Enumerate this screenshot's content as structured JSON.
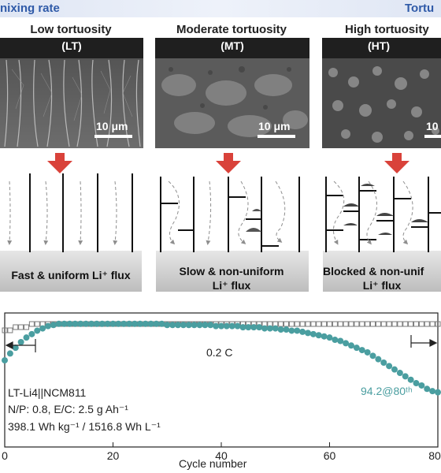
{
  "header": {
    "left": "nixing rate",
    "right": "Tortu"
  },
  "panels": [
    {
      "title": "Low tortuosity",
      "abbr": "(LT)",
      "scale": "10 μm",
      "flux": "Fast & uniform Li⁺ flux",
      "flux2": ""
    },
    {
      "title": "Moderate tortuosity",
      "abbr": "(MT)",
      "scale": "10 μm",
      "flux": "Slow & non-uniform",
      "flux2": "Li⁺ flux"
    },
    {
      "title": "High tortuosity",
      "abbr": "(HT)",
      "scale": "10",
      "flux": "Blocked & non-unif",
      "flux2": "Li⁺ flux"
    }
  ],
  "colors": {
    "arrow": "#d9423a",
    "capacity": "#4a9ea0",
    "efficiency": "#7a7a7a",
    "title_blue": "#2f5aa8"
  },
  "chart_data": {
    "type": "scatter",
    "title": "",
    "xlabel": "Cycle number",
    "ylabel": "",
    "xlim": [
      0,
      80
    ],
    "x_ticks": [
      0,
      20,
      40,
      60,
      80
    ],
    "x_tick_labels": [
      "0",
      "20",
      "40",
      "60",
      "80"
    ],
    "annotations": {
      "rate": "0.2 C",
      "cell": "LT-Li4||NCM811",
      "ratio": "N/P: 0.8, E/C: 2.5 g Ah⁻¹",
      "energy": "398.1 Wh kg⁻¹ / 1516.8 Wh L⁻¹",
      "retention": "94.2@80ᵗʰ"
    },
    "series": [
      {
        "marker": "open-square",
        "values": [
          99.6,
          99.6,
          99.7,
          99.7,
          99.7,
          99.8,
          99.8,
          99.8,
          99.8,
          99.8,
          99.8,
          99.8,
          99.8,
          99.8,
          99.8,
          99.8,
          99.8,
          99.8,
          99.8,
          99.8,
          99.8,
          99.8,
          99.8,
          99.8,
          99.8,
          99.8,
          99.8,
          99.8,
          99.8,
          99.8,
          99.8,
          99.8,
          99.8,
          99.8,
          99.8,
          99.8,
          99.8,
          99.8,
          99.8,
          99.8,
          99.8,
          99.8,
          99.8,
          99.8,
          99.8,
          99.8,
          99.8,
          99.8,
          99.8,
          99.8,
          99.8,
          99.8,
          99.8,
          99.8,
          99.8,
          99.8,
          99.8,
          99.8,
          99.8,
          99.8,
          99.8,
          99.8,
          99.8,
          99.8,
          99.8,
          99.8,
          99.8,
          99.8,
          99.8,
          99.8,
          99.8,
          99.8,
          99.8,
          99.8,
          99.8,
          99.8,
          99.8,
          99.8,
          99.8,
          99.8,
          99.8
        ]
      },
      {
        "marker": "filled-circle",
        "values": [
          97.0,
          97.6,
          98.1,
          98.6,
          99.0,
          99.3,
          99.6,
          99.8,
          100.0,
          100.1,
          100.2,
          100.2,
          100.2,
          100.2,
          100.2,
          100.2,
          100.2,
          100.2,
          100.2,
          100.2,
          100.2,
          100.2,
          100.2,
          100.2,
          100.2,
          100.2,
          100.2,
          100.2,
          100.2,
          100.2,
          100.1,
          100.1,
          100.1,
          100.1,
          100.1,
          100.1,
          100.1,
          100.1,
          100.1,
          100.0,
          100.0,
          100.0,
          100.0,
          100.0,
          99.9,
          99.9,
          99.9,
          99.9,
          99.8,
          99.8,
          99.8,
          99.7,
          99.7,
          99.6,
          99.6,
          99.5,
          99.4,
          99.3,
          99.2,
          99.1,
          99.0,
          98.8,
          98.7,
          98.5,
          98.3,
          98.1,
          97.9,
          97.7,
          97.4,
          97.1,
          96.8,
          96.5,
          96.2,
          95.9,
          95.6,
          95.3,
          95.0,
          94.8,
          94.5,
          94.3,
          94.2
        ]
      }
    ]
  }
}
